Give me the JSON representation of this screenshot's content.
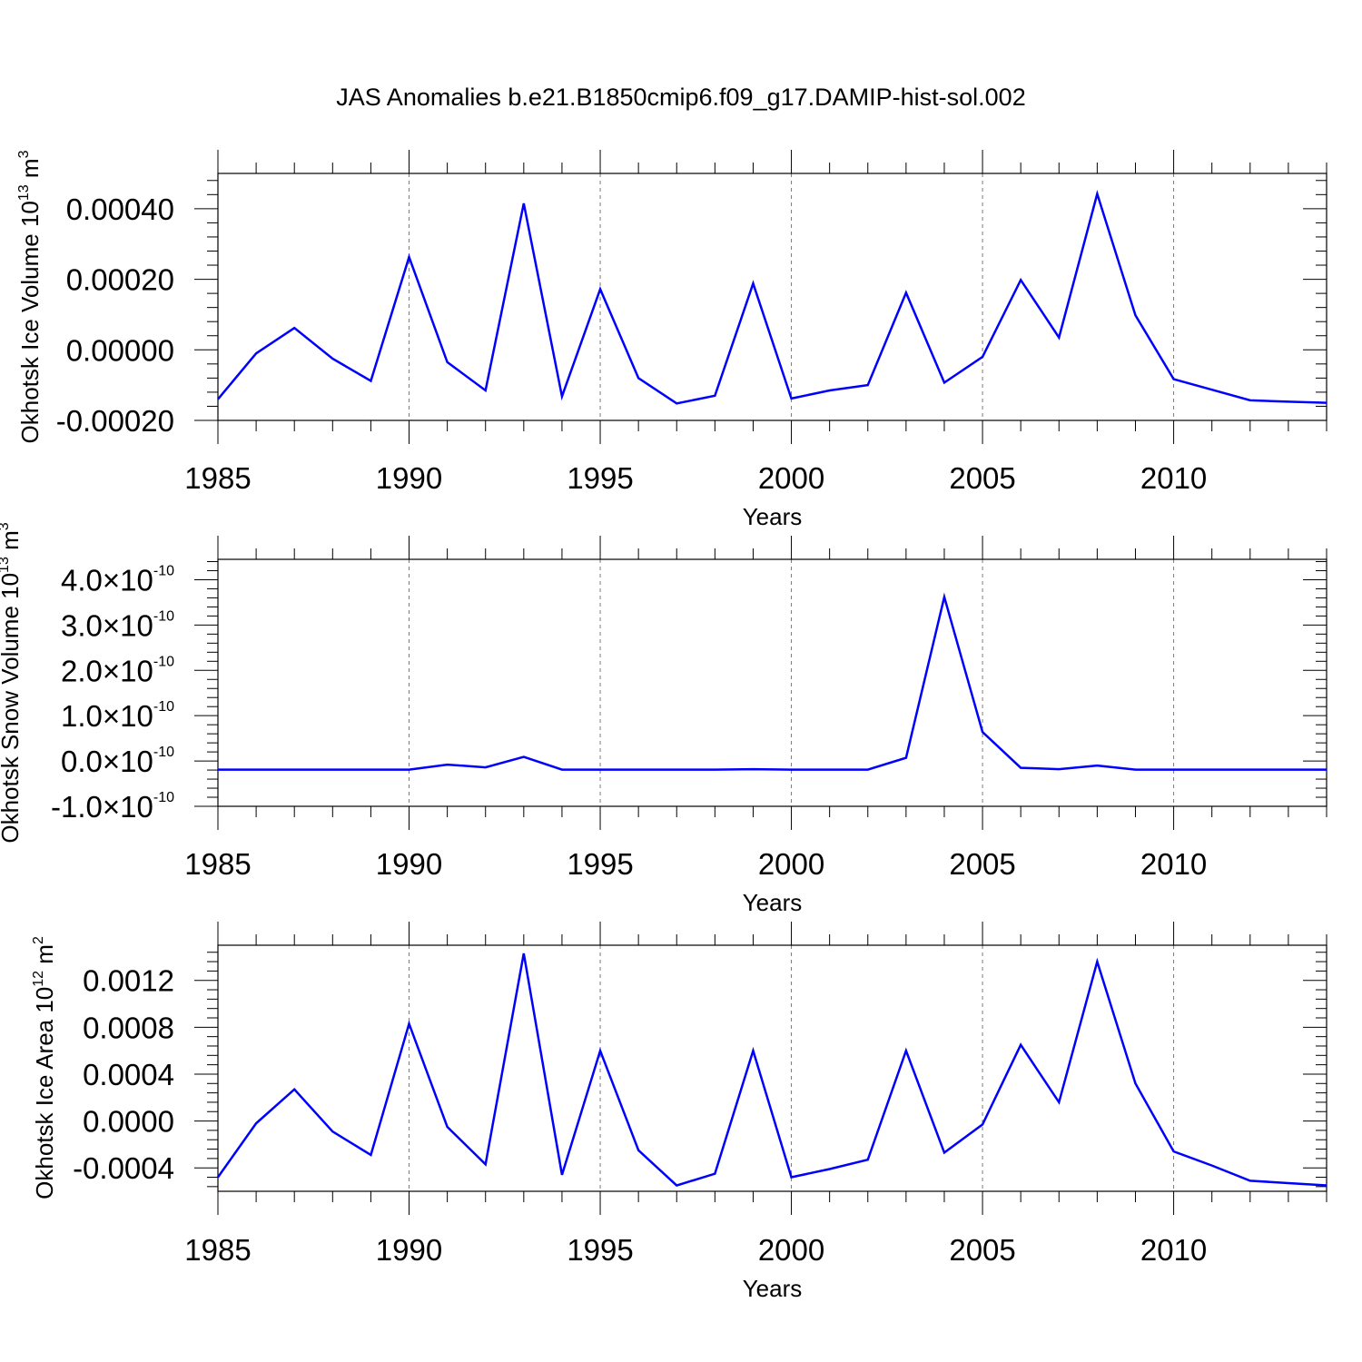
{
  "title": "JAS Anomalies b.e21.B1850cmip6.f09_g17.DAMIP-hist-sol.002",
  "colors": {
    "series": "#0000ff",
    "axis": "#000000",
    "grid": "#7a7a7a"
  },
  "chart_data": [
    {
      "type": "line",
      "id": "ice-volume",
      "ylabel": "Okhotsk Ice Volume 10",
      "ylabel_exp": "13",
      "ylabel_unit": " m",
      "ylabel_unit_exp": "3",
      "xlabel": "Years",
      "xlim": [
        1985,
        2014
      ],
      "ylim": [
        -0.0002,
        0.0005
      ],
      "xticks": [
        1985,
        1990,
        1995,
        2000,
        2005,
        2010
      ],
      "xtick_labels": [
        "1985",
        "1990",
        "1995",
        "2000",
        "2005",
        "2010"
      ],
      "yticks": [
        -0.0002,
        0.0,
        0.0002,
        0.0004
      ],
      "ytick_labels": [
        "-0.00020",
        "0.00000",
        "0.00020",
        "0.00040"
      ],
      "x": [
        1985,
        1986,
        1987,
        1988,
        1989,
        1990,
        1991,
        1992,
        1993,
        1994,
        1995,
        1996,
        1997,
        1998,
        1999,
        2000,
        2001,
        2002,
        2003,
        2004,
        2005,
        2006,
        2007,
        2008,
        2009,
        2010,
        2011,
        2012,
        2013,
        2014
      ],
      "series": [
        {
          "name": "Okhotsk Ice Volume",
          "values": [
            -0.00014,
            -1e-05,
            6.2e-05,
            -2.5e-05,
            -8.8e-05,
            0.000263,
            -3.5e-05,
            -0.000115,
            0.000415,
            -0.000132,
            0.000172,
            -8e-05,
            -0.000152,
            -0.00013,
            0.000188,
            -0.000138,
            -0.000115,
            -0.0001,
            0.000162,
            -9.3e-05,
            -2e-05,
            0.000198,
            3.5e-05,
            0.000442,
            9.8e-05,
            -8.3e-05,
            -0.000113,
            -0.000143,
            -0.000147,
            -0.00015
          ]
        }
      ]
    },
    {
      "type": "line",
      "id": "snow-volume",
      "ylabel": "Okhotsk Snow Volume 10",
      "ylabel_exp": "13",
      "ylabel_unit": " m",
      "ylabel_unit_exp": "3",
      "xlabel": "Years",
      "xlim": [
        1985,
        2014
      ],
      "ylim": [
        -1e-10,
        4.45e-10
      ],
      "xticks": [
        1985,
        1990,
        1995,
        2000,
        2005,
        2010
      ],
      "xtick_labels": [
        "1985",
        "1990",
        "1995",
        "2000",
        "2005",
        "2010"
      ],
      "yticks": [
        -1e-10,
        0.0,
        1e-10,
        2e-10,
        3e-10,
        4e-10
      ],
      "ytick_labels": [
        {
          "mant": "-1.0",
          "exp": "-10"
        },
        {
          "mant": "0.0",
          "exp": "-10"
        },
        {
          "mant": "1.0",
          "exp": "-10"
        },
        {
          "mant": "2.0",
          "exp": "-10"
        },
        {
          "mant": "3.0",
          "exp": "-10"
        },
        {
          "mant": "4.0",
          "exp": "-10"
        }
      ],
      "x": [
        1985,
        1986,
        1987,
        1988,
        1989,
        1990,
        1991,
        1992,
        1993,
        1994,
        1995,
        1996,
        1997,
        1998,
        1999,
        2000,
        2001,
        2002,
        2003,
        2004,
        2005,
        2006,
        2007,
        2008,
        2009,
        2010,
        2011,
        2012,
        2013,
        2014
      ],
      "series": [
        {
          "name": "Okhotsk Snow Volume",
          "values": [
            -1.9e-11,
            -1.9e-11,
            -1.9e-11,
            -1.9e-11,
            -1.9e-11,
            -1.9e-11,
            -8e-12,
            -1.4e-11,
            9e-12,
            -1.9e-11,
            -1.9e-11,
            -1.9e-11,
            -1.9e-11,
            -1.9e-11,
            -1.8e-11,
            -1.9e-11,
            -1.9e-11,
            -1.9e-11,
            7e-12,
            3.62e-10,
            6.4e-11,
            -1.5e-11,
            -1.8e-11,
            -1e-11,
            -1.9e-11,
            -1.9e-11,
            -1.9e-11,
            -1.9e-11,
            -1.9e-11,
            -1.9e-11
          ]
        }
      ]
    },
    {
      "type": "line",
      "id": "ice-area",
      "ylabel": "Okhotsk Ice Area 10",
      "ylabel_exp": "12",
      "ylabel_unit": " m",
      "ylabel_unit_exp": "2",
      "xlabel": "Years",
      "xlim": [
        1985,
        2014
      ],
      "ylim": [
        -0.0006,
        0.0015
      ],
      "xticks": [
        1985,
        1990,
        1995,
        2000,
        2005,
        2010
      ],
      "xtick_labels": [
        "1985",
        "1990",
        "1995",
        "2000",
        "2005",
        "2010"
      ],
      "yticks": [
        -0.0004,
        0.0,
        0.0004,
        0.0008,
        0.0012
      ],
      "ytick_labels": [
        "-0.0004",
        "0.0000",
        "0.0004",
        "0.0008",
        "0.0012"
      ],
      "x": [
        1985,
        1986,
        1987,
        1988,
        1989,
        1990,
        1991,
        1992,
        1993,
        1994,
        1995,
        1996,
        1997,
        1998,
        1999,
        2000,
        2001,
        2002,
        2003,
        2004,
        2005,
        2006,
        2007,
        2008,
        2009,
        2010,
        2011,
        2012,
        2013,
        2014
      ],
      "series": [
        {
          "name": "Okhotsk Ice Area",
          "values": [
            -0.00048,
            -2e-05,
            0.00027,
            -9e-05,
            -0.00029,
            0.00083,
            -5e-05,
            -0.00037,
            0.00143,
            -0.00046,
            0.0006,
            -0.00025,
            -0.00055,
            -0.00045,
            0.0006,
            -0.00048,
            -0.00041,
            -0.00033,
            0.0006,
            -0.00027,
            -3e-05,
            0.00065,
            0.00016,
            0.00136,
            0.00032,
            -0.00026,
            -0.00038,
            -0.00051,
            -0.00053,
            -0.00055
          ]
        }
      ]
    }
  ]
}
